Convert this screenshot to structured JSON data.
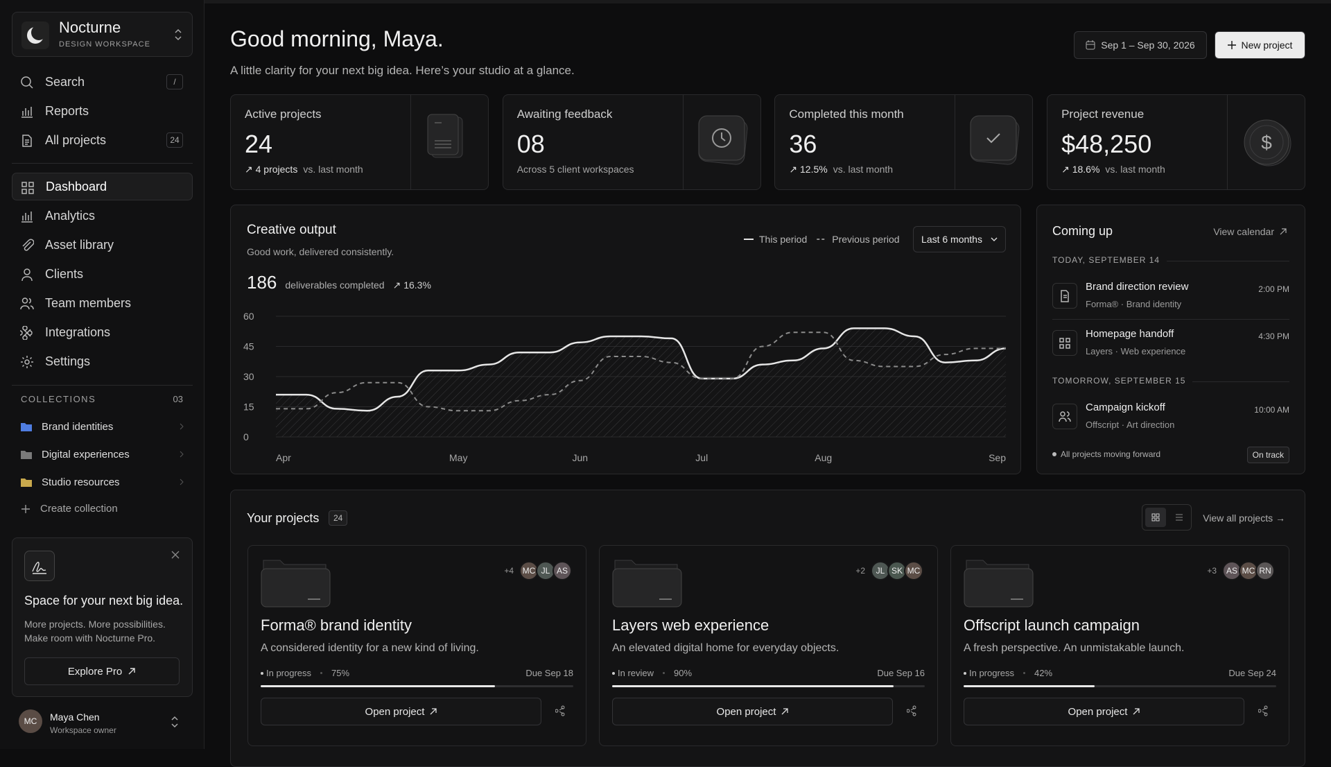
{
  "sidebar": {
    "brand": {
      "name": "Nocturne",
      "subtitle": "DESIGN WORKSPACE"
    },
    "top_nav": [
      {
        "label": "Search",
        "badge": "/"
      },
      {
        "label": "Reports"
      },
      {
        "label": "All projects",
        "badge": "24"
      }
    ],
    "nav": [
      "Dashboard",
      "Analytics",
      "Asset library",
      "Clients",
      "Team members",
      "Integrations",
      "Settings"
    ],
    "collections": {
      "title": "COLLECTIONS",
      "count": "03",
      "items": [
        "Brand identities",
        "Digital experiences",
        "Studio resources"
      ],
      "create": "Create collection"
    },
    "promo": {
      "title": "Space for your next big idea.",
      "text": "More projects. More possibilities. Make room with Nocturne Pro.",
      "button": "Explore Pro"
    },
    "user": {
      "initials": "MC",
      "name": "Maya Chen",
      "role": "Workspace owner"
    }
  },
  "header": {
    "title": "Good morning, Maya.",
    "subtitle": "A little clarity for your next big idea. Here’s your studio at a glance.",
    "date_range": "Sep 1 – Sep 30, 2026",
    "new_project": "New project"
  },
  "stats": [
    {
      "label": "Active projects",
      "value": "24",
      "change": "↗ 4 projects",
      "note": "vs. last month"
    },
    {
      "label": "Awaiting feedback",
      "value": "08",
      "note": "Across 5 client workspaces"
    },
    {
      "label": "Completed this month",
      "value": "36",
      "change": "↗ 12.5%",
      "note": "vs. last month"
    },
    {
      "label": "Project revenue",
      "value": "$48,250",
      "change": "↗ 18.6%",
      "note": "vs. last month"
    }
  ],
  "chart_data": {
    "type": "line",
    "title": "Creative output",
    "subtitle": "Good work, delivered consistently.",
    "summary": {
      "value": "186",
      "text": "deliverables completed",
      "change": "↗ 16.3%"
    },
    "period_select": "Last 6 months",
    "categories": [
      "Apr",
      null,
      null,
      null,
      null,
      null,
      "May",
      null,
      null,
      null,
      "Jun",
      null,
      null,
      null,
      "Jul",
      null,
      null,
      null,
      "Aug",
      null,
      null,
      null,
      null,
      null,
      "Sep"
    ],
    "series": [
      {
        "name": "This period",
        "color": "#e6e6e6",
        "dashed": false,
        "values": [
          21,
          21,
          14,
          13,
          20,
          33,
          33,
          36,
          42,
          42,
          47,
          50,
          50,
          49,
          29,
          29,
          36,
          38,
          44,
          54,
          54,
          50,
          37,
          38,
          44
        ]
      },
      {
        "name": "Previous period",
        "color": "#8c8c8c",
        "dashed": true,
        "values": [
          14,
          14,
          22,
          27,
          27,
          15,
          13,
          13,
          18,
          21,
          28,
          40,
          40,
          37,
          29,
          29,
          45,
          52,
          52,
          38,
          35,
          35,
          41,
          44,
          44
        ]
      }
    ],
    "ylim": [
      0,
      60
    ],
    "yticks": [
      0,
      15,
      30,
      45,
      60
    ],
    "grid": true
  },
  "upcoming": {
    "title": "Coming up",
    "link": "View calendar",
    "groups": [
      {
        "date": "TODAY, SEPTEMBER 14",
        "events": [
          {
            "title": "Brand direction review",
            "meta": "Forma® · Brand identity",
            "time": "2:00 PM"
          },
          {
            "title": "Homepage handoff",
            "meta": "Layers · Web experience",
            "time": "4:30 PM"
          }
        ]
      },
      {
        "date": "TOMORROW, SEPTEMBER 15",
        "events": [
          {
            "title": "Campaign kickoff",
            "meta": "Offscript · Art direction",
            "time": "10:00 AM"
          }
        ]
      }
    ],
    "footer": "All projects moving forward",
    "status": "On track"
  },
  "projects": {
    "title": "Your projects",
    "count": "24",
    "link": "View all projects →",
    "items": [
      {
        "name": "Forma® brand identity",
        "description": "A considered identity for a new kind of living.",
        "status": "In progress",
        "progress": 75,
        "progress_label": "75%",
        "due": "Due Sep 18",
        "extra": "+4",
        "members": [
          "MC",
          "JL",
          "AS"
        ],
        "action": "Open project"
      },
      {
        "name": "Layers web experience",
        "description": "An elevated digital home for everyday objects.",
        "status": "In review",
        "progress": 90,
        "progress_label": "90%",
        "due": "Due Sep 16",
        "extra": "+2",
        "members": [
          "JL",
          "SK",
          "MC"
        ],
        "action": "Open project"
      },
      {
        "name": "Offscript launch campaign",
        "description": "A fresh perspective. An unmistakable launch.",
        "status": "In progress",
        "progress": 42,
        "progress_label": "42%",
        "due": "Due Sep 24",
        "extra": "+3",
        "members": [
          "AS",
          "MC",
          "RN"
        ],
        "action": "Open project"
      }
    ]
  }
}
